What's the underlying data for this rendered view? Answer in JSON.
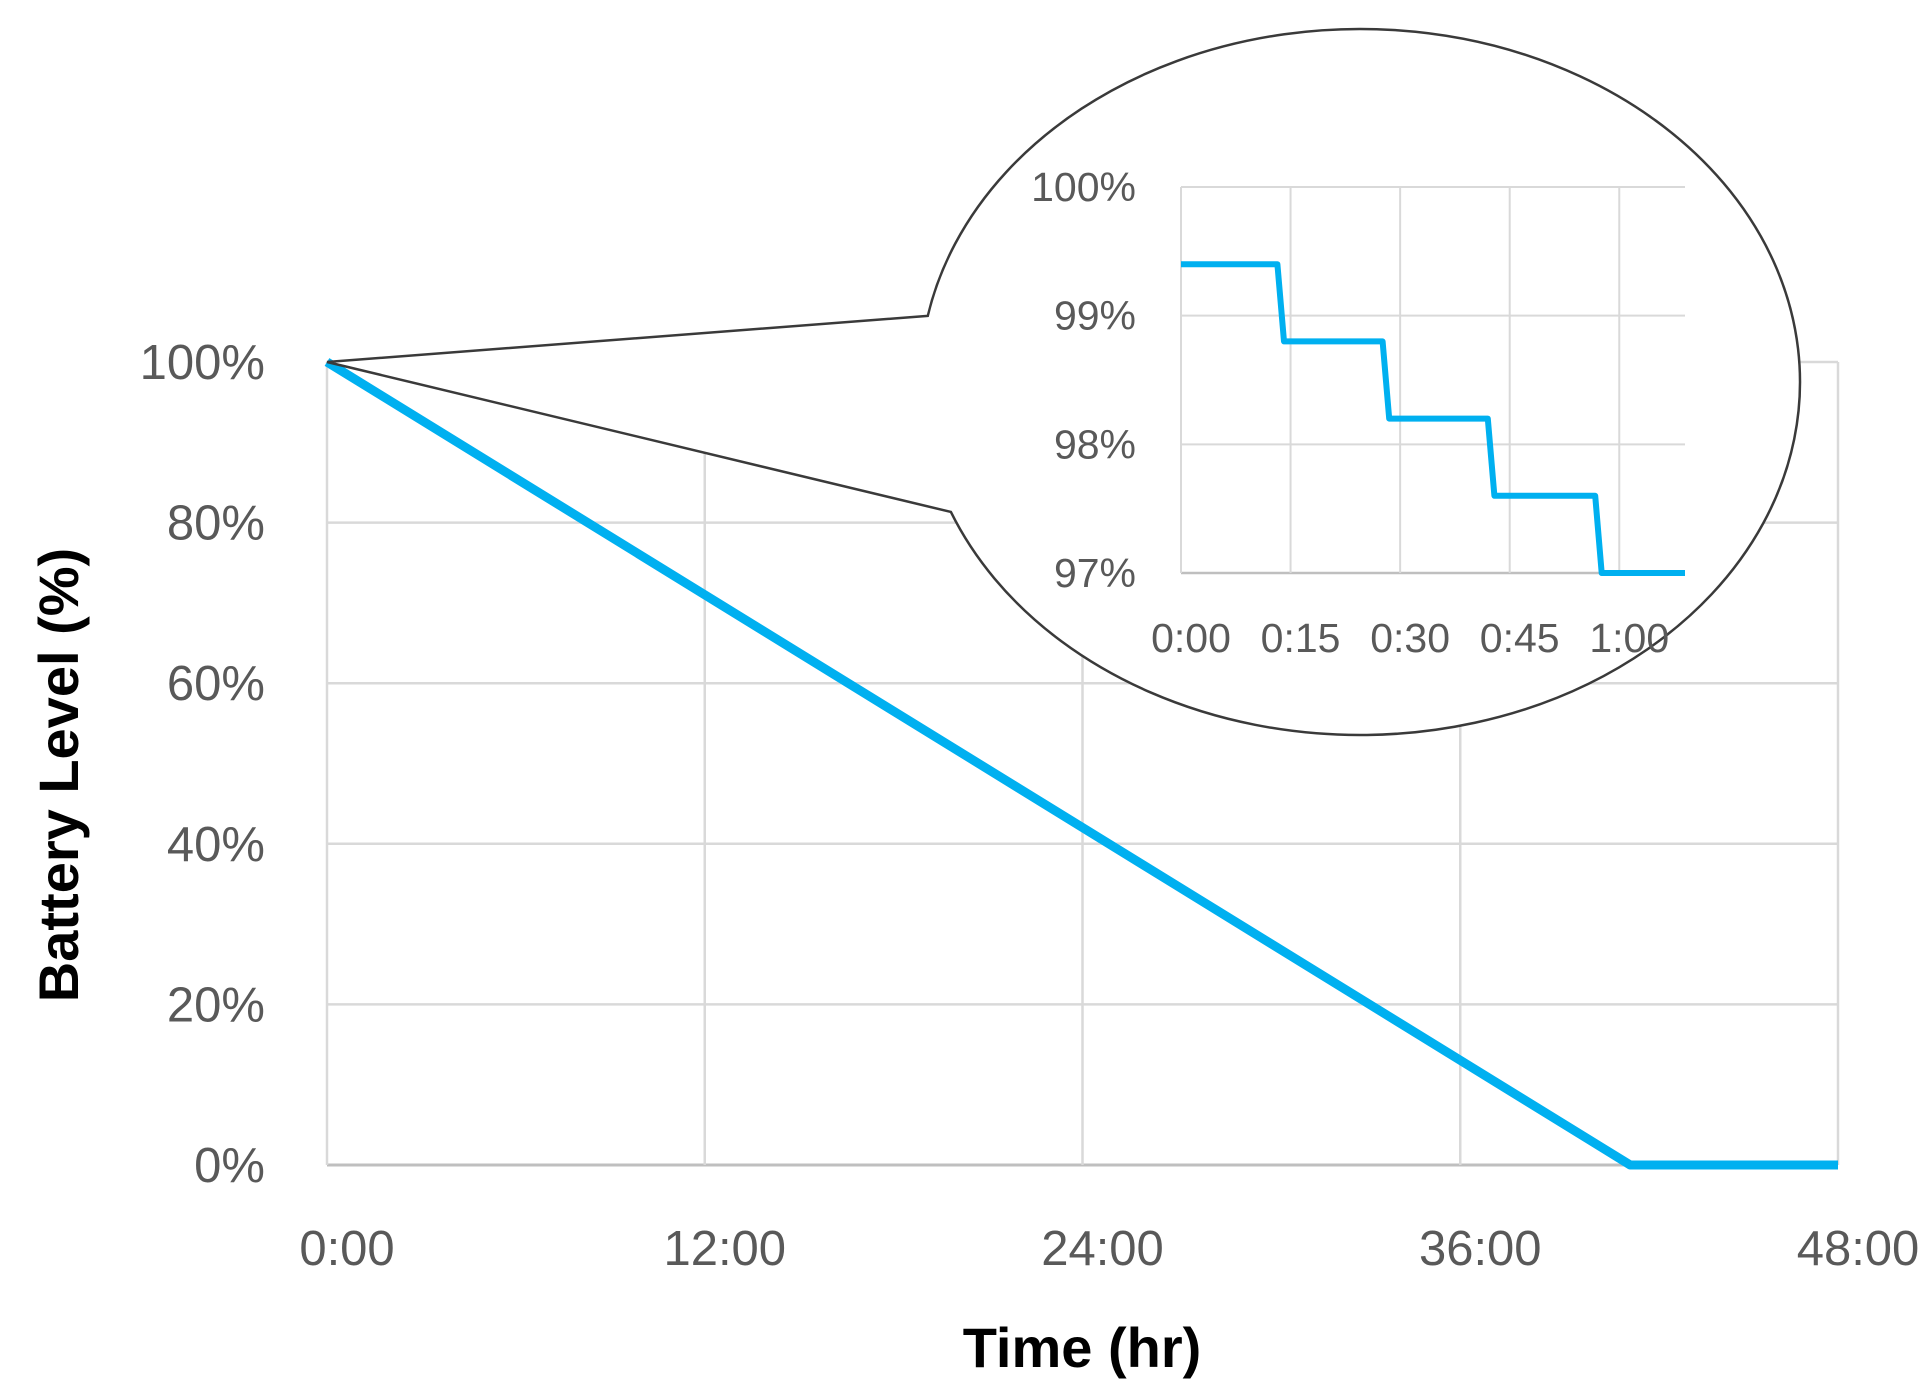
{
  "chart_data": [
    {
      "type": "line",
      "xlabel": "Time (hr)",
      "ylabel": "Battery Level (%)",
      "x_ticks": [
        "0:00",
        "12:00",
        "24:00",
        "36:00",
        "48:00"
      ],
      "y_ticks": [
        "0%",
        "20%",
        "40%",
        "60%",
        "80%",
        "100%"
      ],
      "xlim": [
        0,
        48
      ],
      "ylim": [
        0,
        100
      ],
      "grid": true,
      "line_color": "#00b0f0",
      "series": [
        {
          "x": [
            0,
            41.4,
            48
          ],
          "y": [
            100,
            0,
            0
          ]
        }
      ]
    },
    {
      "type": "line",
      "role": "zoom inset of the first hour",
      "x_ticks": [
        "0:00",
        "0:15",
        "0:30",
        "0:45",
        "1:00"
      ],
      "y_ticks": [
        "97%",
        "98%",
        "99%",
        "100%"
      ],
      "xlim": [
        0,
        1.15
      ],
      "ylim": [
        97,
        100
      ],
      "grid": true,
      "line_color": "#00b0f0",
      "series": [
        {
          "x": [
            0,
            0.22,
            0.235,
            0.46,
            0.475,
            0.7,
            0.715,
            0.945,
            0.96,
            1.15
          ],
          "y": [
            99.4,
            99.4,
            98.8,
            98.8,
            98.2,
            98.2,
            97.6,
            97.6,
            97.0,
            97.0
          ]
        }
      ]
    }
  ]
}
